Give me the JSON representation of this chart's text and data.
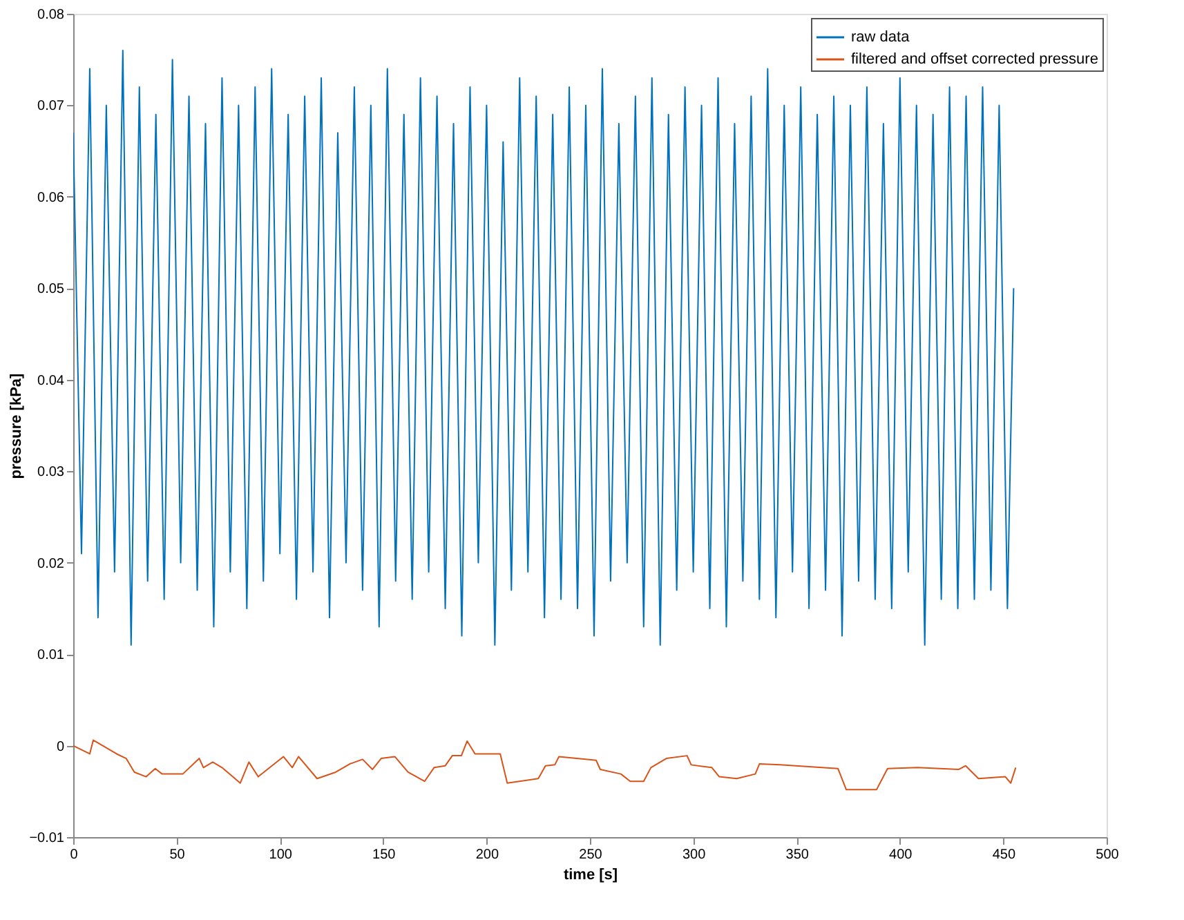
{
  "chart_data": {
    "type": "line",
    "xlabel": "time [s]",
    "ylabel": "pressure [kPa]",
    "xlim": [
      0,
      500
    ],
    "xticks": [
      0,
      50,
      100,
      150,
      200,
      250,
      300,
      350,
      400,
      450,
      500
    ],
    "ylim": [
      -0.01,
      0.08
    ],
    "yticks": [
      -0.01,
      0,
      0.01,
      0.02,
      0.03,
      0.04,
      0.05,
      0.06,
      0.07,
      0.08
    ],
    "grid": false,
    "legend": "top right",
    "line_style": "solid",
    "marker": "none",
    "series": [
      {
        "name": "raw data",
        "color": "#0072bd",
        "x": [
          0,
          4,
          8,
          12,
          16,
          20,
          24,
          28,
          32,
          36,
          40,
          44,
          48,
          52,
          56,
          60,
          64,
          68,
          72,
          76,
          80,
          84,
          88,
          92,
          96,
          100,
          104,
          108,
          112,
          116,
          120,
          124,
          128,
          132,
          136,
          140,
          144,
          148,
          152,
          156,
          160,
          164,
          168,
          172,
          176,
          180,
          184,
          188,
          192,
          196,
          200,
          204,
          208,
          212,
          216,
          220,
          224,
          228,
          232,
          236,
          240,
          244,
          248,
          252,
          256,
          260,
          264,
          268,
          272,
          276,
          280,
          284,
          288,
          292,
          296,
          300,
          304,
          308,
          312,
          316,
          320,
          324,
          328,
          332,
          336,
          340,
          344,
          348,
          352,
          356,
          360,
          364,
          368,
          372,
          376,
          380,
          384,
          388,
          392,
          396,
          400,
          404,
          408,
          412,
          416,
          420,
          424,
          428,
          432,
          436,
          440,
          444,
          448,
          452,
          455
        ],
        "values": [
          0.067,
          0.021,
          0.074,
          0.014,
          0.07,
          0.019,
          0.076,
          0.011,
          0.072,
          0.018,
          0.069,
          0.016,
          0.075,
          0.02,
          0.071,
          0.017,
          0.068,
          0.013,
          0.073,
          0.019,
          0.07,
          0.015,
          0.072,
          0.018,
          0.074,
          0.021,
          0.069,
          0.016,
          0.071,
          0.019,
          0.073,
          0.014,
          0.067,
          0.02,
          0.072,
          0.017,
          0.07,
          0.013,
          0.074,
          0.018,
          0.069,
          0.016,
          0.073,
          0.019,
          0.071,
          0.015,
          0.068,
          0.012,
          0.072,
          0.02,
          0.07,
          0.011,
          0.066,
          0.017,
          0.073,
          0.019,
          0.071,
          0.014,
          0.069,
          0.016,
          0.072,
          0.015,
          0.07,
          0.012,
          0.074,
          0.018,
          0.068,
          0.02,
          0.071,
          0.013,
          0.073,
          0.011,
          0.069,
          0.017,
          0.072,
          0.019,
          0.07,
          0.015,
          0.073,
          0.013,
          0.068,
          0.018,
          0.071,
          0.016,
          0.074,
          0.014,
          0.07,
          0.019,
          0.072,
          0.015,
          0.069,
          0.017,
          0.071,
          0.012,
          0.07,
          0.018,
          0.072,
          0.016,
          0.068,
          0.015,
          0.073,
          0.019,
          0.07,
          0.011,
          0.069,
          0.016,
          0.072,
          0.015,
          0.071,
          0.016,
          0.072,
          0.017,
          0.07,
          0.015,
          0.05
        ]
      },
      {
        "name": "filtered and offset corrected pressure",
        "color": "#d95319",
        "x": [
          0,
          8,
          9.7,
          21,
          25.6,
          29.6,
          35.3,
          39.7,
          43,
          53,
          61,
          63,
          67.5,
          72,
          80.8,
          85,
          89.5,
          101.7,
          106,
          109,
          118,
          127,
          133.8,
          140,
          144.8,
          149,
          155.6,
          162,
          170,
          174.6,
          180,
          183.4,
          187.8,
          190.6,
          194.4,
          206.6,
          210,
          225,
          228.5,
          233,
          235,
          253,
          255,
          265,
          269.5,
          276,
          279.5,
          287,
          297,
          299,
          309,
          312.6,
          321,
          330,
          332,
          342,
          370,
          374,
          388.7,
          394,
          408.6,
          428.5,
          431.8,
          438,
          451,
          453.6,
          456
        ],
        "values": [
          0,
          -0.0009,
          0.0006,
          -0.0009,
          -0.0014,
          -0.0029,
          -0.0034,
          -0.0025,
          -0.0031,
          -0.0031,
          -0.0014,
          -0.0024,
          -0.0018,
          -0.0024,
          -0.0041,
          -0.0018,
          -0.0034,
          -0.0012,
          -0.0024,
          -0.0012,
          -0.0036,
          -0.0029,
          -0.002,
          -0.0015,
          -0.0026,
          -0.0014,
          -0.0012,
          -0.0029,
          -0.0039,
          -0.0024,
          -0.0022,
          -0.0011,
          -0.0011,
          0.0005,
          -0.0009,
          -0.0009,
          -0.0041,
          -0.0036,
          -0.0022,
          -0.0021,
          -0.0012,
          -0.0016,
          -0.0026,
          -0.0031,
          -0.0039,
          -0.0039,
          -0.0024,
          -0.0014,
          -0.0011,
          -0.0021,
          -0.0024,
          -0.0034,
          -0.0036,
          -0.0031,
          -0.002,
          -0.0021,
          -0.0025,
          -0.0048,
          -0.0048,
          -0.0025,
          -0.0024,
          -0.0026,
          -0.0022,
          -0.0036,
          -0.0034,
          -0.0041,
          -0.0024
        ]
      }
    ]
  }
}
